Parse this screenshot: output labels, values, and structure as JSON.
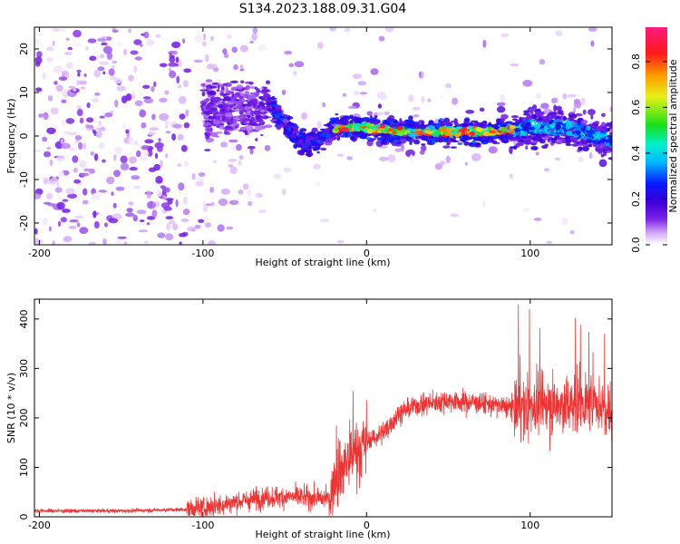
{
  "title": "S134.2023.188.09.31.G04",
  "chart_data": [
    {
      "type": "heatmap",
      "xlabel": "Height of straight line (km)",
      "ylabel": "Frequency (Hz)",
      "xlim": [
        -203,
        150
      ],
      "ylim": [
        -25,
        25
      ],
      "xticks": [
        -200,
        -100,
        0,
        100
      ],
      "yticks": [
        20,
        10,
        0,
        -10,
        -20
      ],
      "colorbar": {
        "label": "Normalized spectral amplitude",
        "range": [
          0,
          0.95
        ],
        "ticks": [
          0,
          0.2,
          0.4,
          0.6,
          0.8
        ],
        "colors": [
          "#ffffff",
          "#d8b0f8",
          "#7a20e6",
          "#3a00d8",
          "#0a18ff",
          "#00b8ff",
          "#00f0d0",
          "#18e018",
          "#e8f018",
          "#ff9a00",
          "#ff1818",
          "#ff1a80"
        ]
      },
      "ridge": {
        "x": [
          -65,
          -60,
          -55,
          -50,
          -45,
          -40,
          -35,
          -30,
          -25,
          -20,
          -10,
          0,
          20,
          40,
          60,
          80,
          100,
          120,
          140,
          150
        ],
        "y": [
          6,
          8,
          5,
          3,
          1,
          -1,
          -2,
          -1,
          0,
          2,
          2,
          2,
          1,
          1,
          1,
          1,
          2,
          2,
          0,
          -1
        ]
      }
    },
    {
      "type": "line",
      "xlabel": "Height of straight line (km)",
      "ylabel": "SNR (10 * v/v)",
      "xlim": [
        -203,
        150
      ],
      "ylim": [
        0,
        440
      ],
      "xticks": [
        -200,
        -100,
        0,
        100
      ],
      "yticks": [
        0,
        100,
        200,
        300,
        400
      ],
      "color": "#ee3333",
      "envelope": {
        "x": [
          -203,
          -150,
          -110,
          -100,
          -80,
          -60,
          -40,
          -22,
          -20,
          -10,
          0,
          10,
          20,
          30,
          50,
          70,
          80,
          90,
          100,
          110,
          120,
          130,
          140,
          150
        ],
        "y": [
          12,
          12,
          15,
          18,
          30,
          40,
          40,
          35,
          80,
          120,
          150,
          170,
          210,
          225,
          235,
          230,
          225,
          220,
          225,
          225,
          225,
          230,
          230,
          220
        ]
      }
    }
  ]
}
